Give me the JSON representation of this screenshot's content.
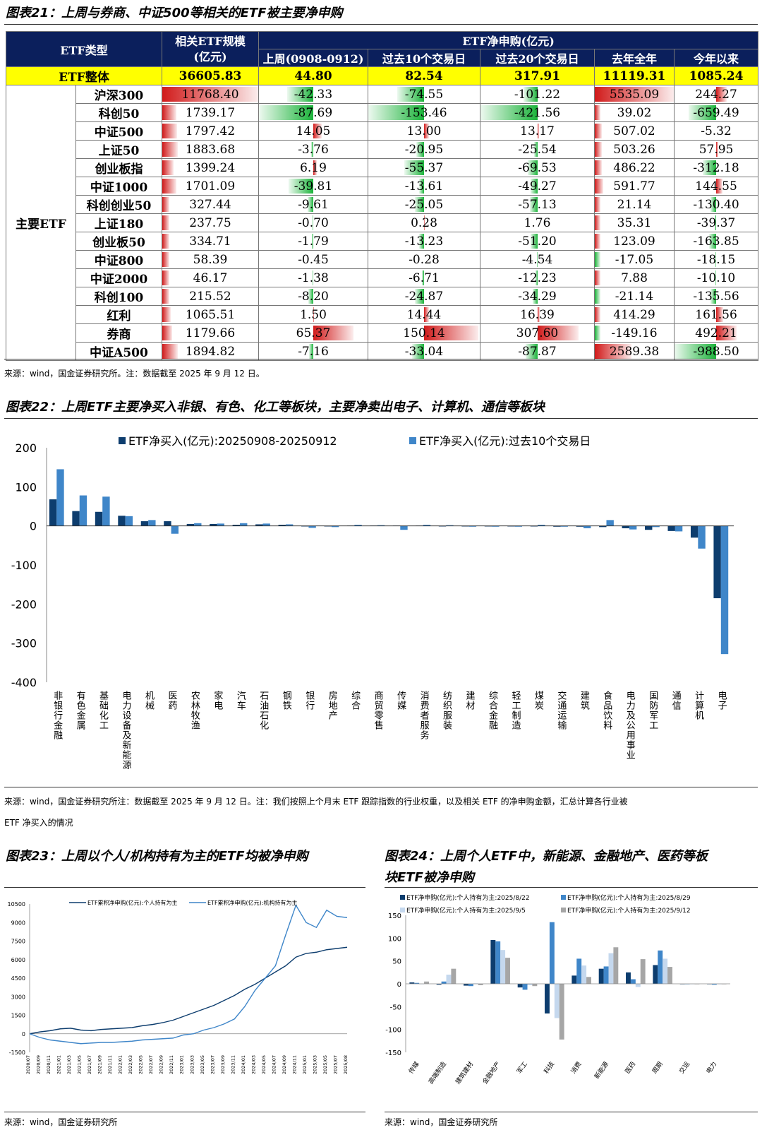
{
  "fig21": {
    "title": "图表21：上周与券商、中证500等相关的ETF被主要净申购",
    "source": "来源：wind，国金证券研究所。注：数据截至 2025 年 9 月 12 日。",
    "headers": {
      "type": "ETF类型",
      "scale": "相关ETF规模",
      "scale_unit": "(亿元)",
      "net_sub": "ETF净申购(亿元)",
      "cols": [
        "上周(0908-0912)",
        "过去10个交易日",
        "过去20个交易日",
        "去年全年",
        "今年以来"
      ]
    },
    "total": {
      "label": "ETF整体",
      "values": [
        "36605.83",
        "44.80",
        "82.54",
        "317.91",
        "11119.31",
        "1085.24"
      ]
    },
    "group_label": "主要ETF",
    "rows": [
      {
        "name": "沪深300",
        "values": [
          "11768.40",
          "-42.33",
          "-74.55",
          "-101.22",
          "5535.09",
          "244.27"
        ]
      },
      {
        "name": "科创50",
        "values": [
          "1739.17",
          "-87.69",
          "-153.46",
          "-421.56",
          "39.02",
          "-659.49"
        ]
      },
      {
        "name": "中证500",
        "values": [
          "1797.42",
          "14.05",
          "13.00",
          "13.17",
          "507.02",
          "-5.32"
        ]
      },
      {
        "name": "上证50",
        "values": [
          "1883.68",
          "-3.76",
          "-20.95",
          "-25.54",
          "503.26",
          "57.95"
        ]
      },
      {
        "name": "创业板指",
        "values": [
          "1399.24",
          "6.19",
          "-55.37",
          "-69.53",
          "486.22",
          "-312.18"
        ]
      },
      {
        "name": "中证1000",
        "values": [
          "1701.09",
          "-39.81",
          "-13.61",
          "-49.27",
          "591.77",
          "144.55"
        ]
      },
      {
        "name": "科创创业50",
        "values": [
          "327.44",
          "-9.61",
          "-25.05",
          "-57.13",
          "21.14",
          "-130.40"
        ]
      },
      {
        "name": "上证180",
        "values": [
          "237.75",
          "-0.70",
          "0.28",
          "1.76",
          "35.31",
          "-39.37"
        ]
      },
      {
        "name": "创业板50",
        "values": [
          "334.71",
          "-1.79",
          "-13.23",
          "-51.20",
          "123.09",
          "-163.85"
        ]
      },
      {
        "name": "中证800",
        "values": [
          "58.39",
          "-0.45",
          "-0.28",
          "-4.54",
          "-17.05",
          "-18.15"
        ]
      },
      {
        "name": "中证2000",
        "values": [
          "46.17",
          "-1.38",
          "-6.71",
          "-12.23",
          "7.88",
          "-10.10"
        ]
      },
      {
        "name": "科创100",
        "values": [
          "215.52",
          "-8.20",
          "-24.87",
          "-34.29",
          "-21.14",
          "-135.56"
        ]
      },
      {
        "name": "红利",
        "values": [
          "1065.51",
          "1.50",
          "14.44",
          "16.39",
          "414.29",
          "161.56"
        ]
      },
      {
        "name": "券商",
        "values": [
          "1179.66",
          "65.37",
          "150.14",
          "307.60",
          "-149.16",
          "492.21"
        ]
      },
      {
        "name": "中证A500",
        "values": [
          "1894.82",
          "-7.16",
          "-33.04",
          "-87.87",
          "2589.38",
          "-988.50"
        ]
      }
    ]
  },
  "fig22": {
    "title": "图表22：上周ETF主要净买入非银、有色、化工等板块，主要净卖出电子、计算机、通信等板块",
    "source": "来源：wind，国金证券研究所注：数据截至 2025 年 9 月 12 日。注：我们按照上个月末 ETF 跟踪指数的行业权重，以及相关 ETF 的净申购金额，汇总计算各行业被",
    "source2": "ETF 净买入的情况",
    "chart_data": {
      "type": "bar",
      "categories": [
        "非银行金融",
        "有色金属",
        "基础化工",
        "电力设备及新能源",
        "机械",
        "医药",
        "农林牧渔",
        "家电",
        "汽车",
        "石油石化",
        "钢铁",
        "银行",
        "房地产",
        "综合",
        "商贸零售",
        "传媒",
        "消费者服务",
        "纺织服装",
        "建材",
        "综合金融",
        "轻工制造",
        "煤炭",
        "交通运输",
        "建筑",
        "食品饮料",
        "电力及公用事业",
        "国防军工",
        "通信",
        "计算机",
        "电子"
      ],
      "series": [
        {
          "name": "ETF净买入(亿元):20250908-20250912",
          "color": "#0d3d6e",
          "values": [
            68,
            38,
            36,
            26,
            12,
            12,
            5,
            5,
            3,
            4,
            3,
            -1,
            -1,
            1,
            1,
            1,
            1,
            -1,
            -1,
            -1,
            -1,
            -1,
            -2,
            -2,
            -3,
            -6,
            -10,
            -13,
            -30,
            -185
          ]
        },
        {
          "name": "ETF净买入(亿元):过去10个交易日",
          "color": "#3f86c9",
          "values": [
            145,
            78,
            75,
            25,
            15,
            -20,
            7,
            6,
            7,
            6,
            4,
            -5,
            -3,
            3,
            2,
            -10,
            3,
            2,
            -2,
            -2,
            -2,
            3,
            -2,
            -6,
            15,
            -9,
            -3,
            -14,
            -58,
            -328
          ]
        }
      ],
      "ylim": [
        -400,
        200
      ],
      "yticks": [
        200,
        100,
        0,
        -100,
        -200,
        -300,
        -400
      ]
    }
  },
  "fig23": {
    "title": "图表23：上周以个人/机构持有为主的ETF均被净申购",
    "source": "来源：wind，国金证券研究所",
    "chart_data": {
      "type": "line",
      "x": [
        "2020/07",
        "2020/09",
        "2020/11",
        "2021/01",
        "2021/03",
        "2021/05",
        "2021/07",
        "2021/09",
        "2021/11",
        "2022/01",
        "2022/03",
        "2022/05",
        "2022/07",
        "2022/09",
        "2022/11",
        "2023/01",
        "2023/03",
        "2023/05",
        "2023/07",
        "2023/09",
        "2023/11",
        "2024/01",
        "2024/03",
        "2024/05",
        "2024/07",
        "2024/09",
        "2024/11",
        "2025/01",
        "2025/03",
        "2025/05",
        "2025/07",
        "2025/08"
      ],
      "series": [
        {
          "name": "ETF累积净申购(亿元):个人持有为主",
          "color": "#0d3d6e",
          "values": [
            0,
            150,
            250,
            400,
            450,
            300,
            250,
            350,
            400,
            450,
            500,
            650,
            750,
            900,
            1100,
            1400,
            1700,
            2000,
            2300,
            2700,
            3100,
            3600,
            4000,
            4500,
            5000,
            5500,
            6200,
            6500,
            6600,
            6800,
            6900,
            7000
          ]
        },
        {
          "name": "ETF累积净申购(亿元):机构持有为主",
          "color": "#3f86c9",
          "values": [
            0,
            -300,
            -500,
            -600,
            -700,
            -800,
            -750,
            -700,
            -700,
            -650,
            -600,
            -500,
            -450,
            -400,
            -350,
            -100,
            0,
            300,
            500,
            800,
            1200,
            2200,
            3500,
            4500,
            5500,
            8000,
            10400,
            9000,
            8600,
            10000,
            9500,
            9400
          ]
        }
      ],
      "ylim": [
        -1500,
        10500
      ],
      "yticks": [
        10500,
        9000,
        7500,
        6000,
        4500,
        3000,
        1500,
        0,
        -1500
      ]
    }
  },
  "fig24": {
    "title": "图表24：上周个人ETF中，新能源、金融地产、医药等板块ETF被净申购",
    "title_line1": "图表24：上周个人ETF中，新能源、金融地产、医药等板",
    "title_line2": "块ETF被净申购",
    "source": "来源：wind，国金证券研究所",
    "chart_data": {
      "type": "bar",
      "categories": [
        "传媒",
        "高端制造",
        "建筑建材",
        "金融地产",
        "军工",
        "科技",
        "消费",
        "新能源",
        "医药",
        "周期",
        "交运",
        "电力"
      ],
      "series": [
        {
          "name": "ETF净申购(亿元):个人持有为主:2025/8/22",
          "color": "#0d3d6e",
          "values": [
            3,
            -2,
            -4,
            96,
            -8,
            -65,
            18,
            33,
            25,
            41,
            -1,
            -1
          ]
        },
        {
          "name": "ETF净申购(亿元):个人持有为主:2025/8/29",
          "color": "#3f86c9",
          "values": [
            2,
            5,
            -5,
            93,
            -13,
            135,
            55,
            38,
            10,
            73,
            -1,
            -2
          ]
        },
        {
          "name": "ETF净申购(亿元):个人持有为主:2025/9/5",
          "color": "#c5d8ee",
          "values": [
            0,
            20,
            1,
            74,
            -3,
            -75,
            40,
            67,
            -7,
            55,
            -1,
            -1
          ]
        },
        {
          "name": "ETF净申购(亿元):个人持有为主:2025/9/12",
          "color": "#a6a6a6",
          "values": [
            5,
            33,
            -3,
            57,
            -5,
            -122,
            15,
            80,
            54,
            37,
            -1,
            -1
          ]
        }
      ],
      "ylim": [
        -150,
        150
      ],
      "yticks": [
        150,
        100,
        50,
        0,
        -50,
        -100,
        -150
      ]
    }
  }
}
